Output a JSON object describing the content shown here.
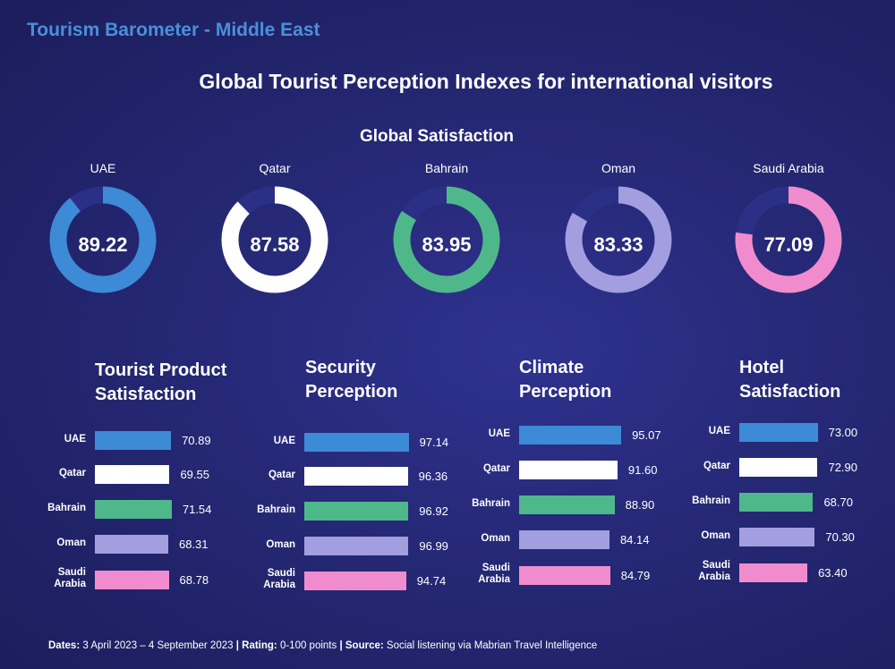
{
  "header": {
    "title": "Tourism Barometer - Middle East"
  },
  "main_title": "Global Tourist Perception Indexes for international visitors",
  "global_title": "Global Satisfaction",
  "colors": {
    "UAE": "#3d8ad6",
    "Qatar": "#ffffff",
    "Bahrain": "#4fb88a",
    "Oman": "#a29ee0",
    "Saudi Arabia": "#f08ccd",
    "remainder": "#2c2f86"
  },
  "footer": {
    "dates_label": "Dates:",
    "dates_value": "3 April 2023 – 4 September 2023",
    "rating_label": "Rating:",
    "rating_value": "0-100 points",
    "source_label": "Source:",
    "source_value": "Social listening via Mabrian Travel Intelligence",
    "sep": "|"
  },
  "chart_data": [
    {
      "type": "donut",
      "title": "Global Satisfaction",
      "scale_max": 100,
      "categories": [
        "UAE",
        "Qatar",
        "Bahrain",
        "Oman",
        "Saudi Arabia"
      ],
      "labels": [
        "89.22",
        "87.58",
        "83.95",
        "83.33",
        "77.09"
      ],
      "values": [
        89.22,
        87.58,
        83.95,
        83.33,
        77.09
      ]
    },
    {
      "type": "bar",
      "title_lines": [
        "Tourist Product",
        "Satisfaction"
      ],
      "categories": [
        "UAE",
        "Qatar",
        "Bahrain",
        "Oman",
        "Saudi Arabia"
      ],
      "category_lines": [
        [
          "UAE"
        ],
        [
          "Qatar"
        ],
        [
          "Bahrain"
        ],
        [
          "Oman"
        ],
        [
          "Saudi",
          "Arabia"
        ]
      ],
      "labels": [
        "70.89",
        "69.55",
        "71.54",
        "68.31",
        "68.78"
      ],
      "values": [
        70.89,
        69.55,
        71.54,
        68.31,
        68.78
      ]
    },
    {
      "type": "bar",
      "title_lines": [
        "Security",
        "Perception"
      ],
      "categories": [
        "UAE",
        "Qatar",
        "Bahrain",
        "Oman",
        "Saudi Arabia"
      ],
      "category_lines": [
        [
          "UAE"
        ],
        [
          "Qatar"
        ],
        [
          "Bahrain"
        ],
        [
          "Oman"
        ],
        [
          "Saudi",
          "Arabia"
        ]
      ],
      "labels": [
        "97.14",
        "96.36",
        "96.92",
        "96.99",
        "94.74"
      ],
      "values": [
        97.14,
        96.36,
        96.92,
        96.99,
        94.74
      ]
    },
    {
      "type": "bar",
      "title_lines": [
        "Climate",
        "Perception"
      ],
      "categories": [
        "UAE",
        "Qatar",
        "Bahrain",
        "Oman",
        "Saudi Arabia"
      ],
      "category_lines": [
        [
          "UAE"
        ],
        [
          "Qatar"
        ],
        [
          "Bahrain"
        ],
        [
          "Oman"
        ],
        [
          "Saudi",
          "Arabia"
        ]
      ],
      "labels": [
        "95.07",
        "91.60",
        "88.90",
        "84.14",
        "84.79"
      ],
      "values": [
        95.07,
        91.6,
        88.9,
        84.14,
        84.79
      ]
    },
    {
      "type": "bar",
      "title_lines": [
        "Hotel",
        "Satisfaction"
      ],
      "categories": [
        "UAE",
        "Qatar",
        "Bahrain",
        "Oman",
        "Saudi Arabia"
      ],
      "category_lines": [
        [
          "UAE"
        ],
        [
          "Qatar"
        ],
        [
          "Bahrain"
        ],
        [
          "Oman"
        ],
        [
          "Saudi",
          "Arabia"
        ]
      ],
      "labels": [
        "73.00",
        "72.90",
        "68.70",
        "70.30",
        "63.40"
      ],
      "values": [
        73.0,
        72.9,
        68.7,
        70.3,
        63.4
      ]
    }
  ]
}
